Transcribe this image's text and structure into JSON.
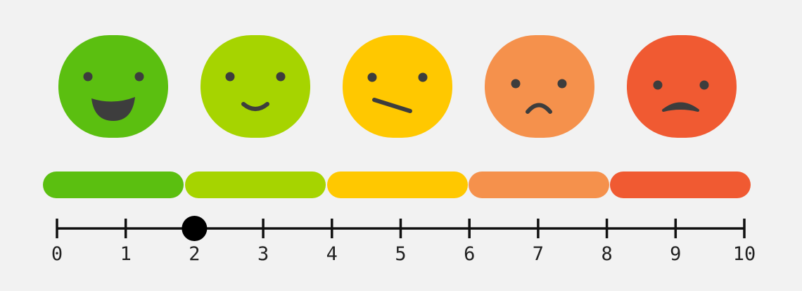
{
  "scale": {
    "ticks": [
      0,
      1,
      2,
      3,
      4,
      5,
      6,
      7,
      8,
      9,
      10
    ],
    "marker": 2
  }
}
